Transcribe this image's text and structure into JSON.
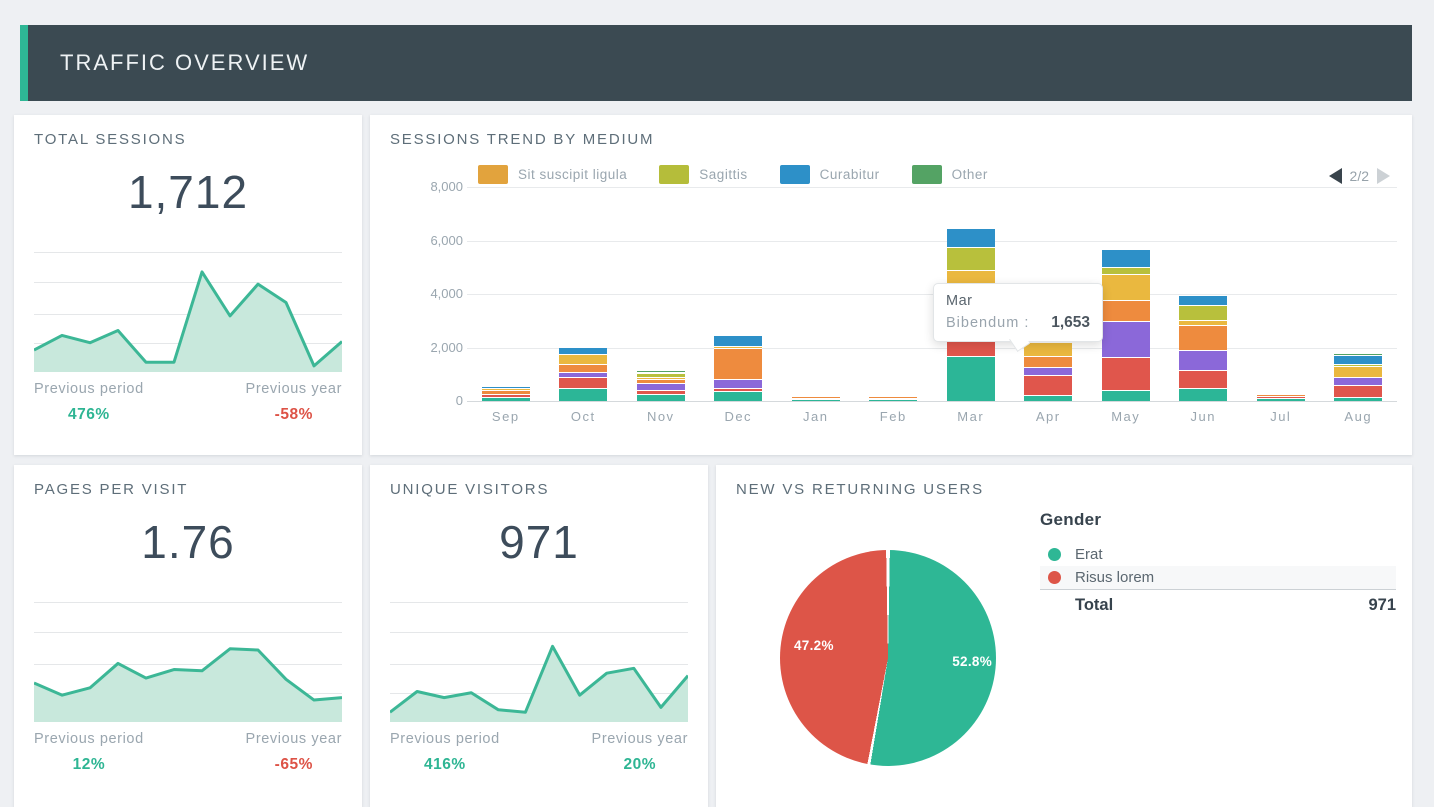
{
  "header": {
    "title": "TRAFFIC OVERVIEW"
  },
  "colors": {
    "accent_green": "#2eb795",
    "header_bg": "#3b4a52",
    "positive": "#2eb593",
    "negative": "#dd5246",
    "spark_stroke": "#3cb796",
    "spark_fill": "#c8e8dc",
    "muted_text": "#9aa6af",
    "title_text": "#5e6e79"
  },
  "cards": {
    "total_sessions": {
      "title": "TOTAL SESSIONS",
      "value": "1,712",
      "previous_period": {
        "label": "Previous period",
        "value": "476%",
        "direction": "up"
      },
      "previous_year": {
        "label": "Previous year",
        "value": "-58%",
        "direction": "down"
      }
    },
    "sessions_trend": {
      "title": "SESSIONS TREND BY MEDIUM",
      "legend": [
        {
          "label": "Sit suscipit ligula",
          "color": "#e2a33d"
        },
        {
          "label": "Sagittis",
          "color": "#b5bd3a"
        },
        {
          "label": "Curabitur",
          "color": "#2d90c8"
        },
        {
          "label": "Other",
          "color": "#54a364"
        }
      ],
      "pager": {
        "label": "2/2",
        "prev_enabled": true,
        "next_enabled": false
      },
      "tooltip": {
        "month": "Mar",
        "series_label": "Bibendum :",
        "value": "1,653"
      }
    },
    "pages_per_visit": {
      "title": "PAGES PER VISIT",
      "value": "1.76",
      "previous_period": {
        "label": "Previous period",
        "value": "12%",
        "direction": "up"
      },
      "previous_year": {
        "label": "Previous year",
        "value": "-65%",
        "direction": "down"
      }
    },
    "unique_visitors": {
      "title": "UNIQUE VISITORS",
      "value": "971",
      "previous_period": {
        "label": "Previous period",
        "value": "416%",
        "direction": "up"
      },
      "previous_year": {
        "label": "Previous year",
        "value": "20%",
        "direction": "up"
      }
    },
    "new_vs_returning": {
      "title": "NEW VS RETURNING USERS",
      "pct_left": "47.2%",
      "pct_right": "52.8%",
      "gender": {
        "heading": "Gender",
        "rows": [
          {
            "label": "Erat",
            "color": "#2eb795"
          },
          {
            "label": "Risus lorem",
            "color": "#dd5548"
          }
        ],
        "total_label": "Total",
        "total_value": "971"
      }
    }
  },
  "chart_data": [
    {
      "id": "total-sessions-spark",
      "type": "area",
      "title": "TOTAL SESSIONS sparkline",
      "values": [
        18,
        30,
        24,
        34,
        8,
        8,
        82,
        46,
        72,
        57,
        5,
        25
      ],
      "ylim": [
        0,
        100
      ],
      "grid": true
    },
    {
      "id": "sessions-trend",
      "type": "bar",
      "stacked": true,
      "title": "SESSIONS TREND BY MEDIUM",
      "categories": [
        "Sep",
        "Oct",
        "Nov",
        "Dec",
        "Jan",
        "Feb",
        "Mar",
        "Apr",
        "May",
        "Jun",
        "Jul",
        "Aug"
      ],
      "ylim": [
        0,
        8000
      ],
      "yticks": [
        "8,000",
        "6,000",
        "4,000",
        "2,000",
        "0"
      ],
      "legend_position": "top",
      "legend_page": "2/2",
      "series": [
        {
          "name": "Bibendum",
          "color": "#2cb697",
          "values": [
            100,
            460,
            220,
            330,
            40,
            40,
            1653,
            190,
            370,
            440,
            60,
            125
          ]
        },
        {
          "name": "unlabeled-red",
          "color": "#e0564c",
          "values": [
            140,
            420,
            140,
            130,
            50,
            50,
            1050,
            750,
            1250,
            685,
            90,
            450
          ]
        },
        {
          "name": "unlabeled-purple",
          "color": "#8b68d9",
          "values": [
            0,
            160,
            260,
            330,
            0,
            0,
            200,
            290,
            1350,
            750,
            0,
            300
          ]
        },
        {
          "name": "unlabeled-orange",
          "color": "#ee8b3e",
          "values": [
            120,
            310,
            170,
            1150,
            50,
            50,
            1450,
            400,
            770,
            935,
            80,
            0
          ]
        },
        {
          "name": "Sit suscipit ligula",
          "color": "#eab83f",
          "values": [
            100,
            375,
            80,
            90,
            40,
            40,
            500,
            535,
            970,
            190,
            40,
            400
          ]
        },
        {
          "name": "Sagittis",
          "color": "#b8c03c",
          "values": [
            0,
            0,
            150,
            0,
            50,
            40,
            880,
            0,
            250,
            560,
            0,
            60
          ]
        },
        {
          "name": "Curabitur",
          "color": "#2d90c8",
          "values": [
            60,
            250,
            50,
            420,
            0,
            0,
            700,
            0,
            690,
            350,
            0,
            340
          ]
        },
        {
          "name": "Other",
          "color": "#54a364",
          "values": [
            0,
            60,
            60,
            0,
            30,
            20,
            0,
            0,
            0,
            0,
            30,
            80
          ]
        }
      ],
      "annotation_tooltip": {
        "category": "Mar",
        "series": "Bibendum",
        "value": 1653
      }
    },
    {
      "id": "pages-per-visit-spark",
      "type": "area",
      "title": "PAGES PER VISIT sparkline",
      "values": [
        32,
        22,
        28,
        48,
        36,
        43,
        42,
        60,
        59,
        35,
        18,
        20
      ],
      "ylim": [
        0,
        100
      ],
      "grid": true
    },
    {
      "id": "unique-visitors-spark",
      "type": "area",
      "title": "UNIQUE VISITORS sparkline",
      "values": [
        8,
        25,
        20,
        24,
        10,
        8,
        62,
        22,
        40,
        44,
        12,
        38
      ],
      "ylim": [
        0,
        100
      ],
      "grid": true
    },
    {
      "id": "new-vs-returning-pie",
      "type": "pie",
      "title": "Gender",
      "slices": [
        {
          "label": "Erat",
          "pct": 52.8,
          "color": "#2eb795"
        },
        {
          "label": "Risus lorem",
          "pct": 47.2,
          "color": "#dd5548"
        }
      ],
      "total": 971,
      "start_angle_deg": 0,
      "direction": "clockwise"
    }
  ]
}
